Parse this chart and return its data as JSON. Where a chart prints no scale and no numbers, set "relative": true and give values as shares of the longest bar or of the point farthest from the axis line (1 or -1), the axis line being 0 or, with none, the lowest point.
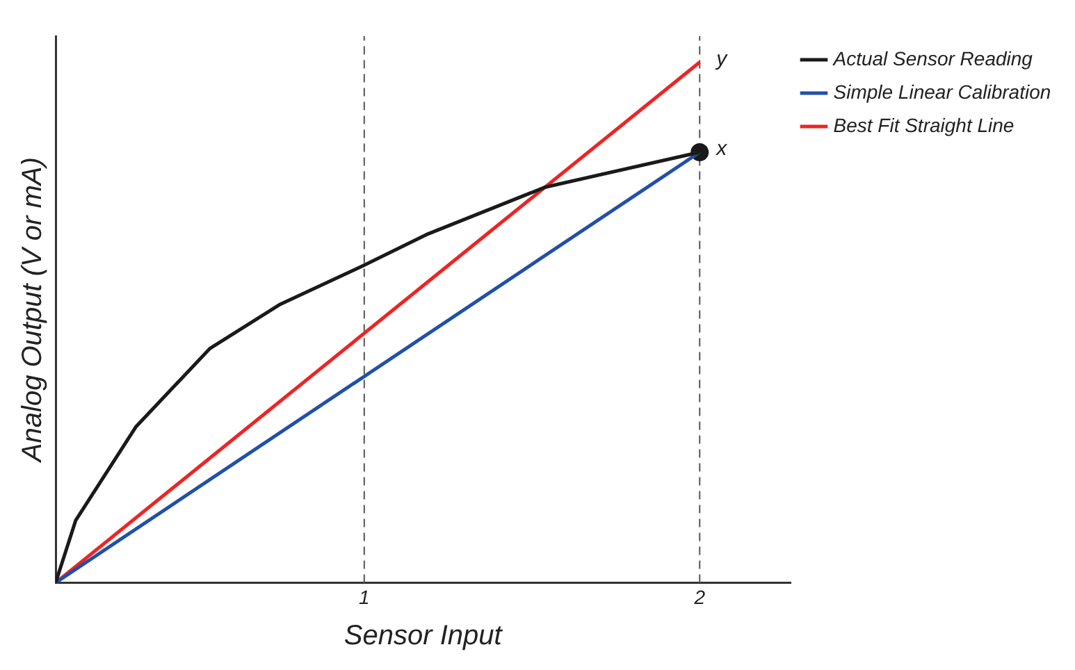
{
  "chart_data": {
    "type": "line",
    "relative": true,
    "xlabel": "Sensor Input",
    "ylabel": "Analog Output (V or mA)",
    "xlim": [
      0.08,
      2.27
    ],
    "xticks": [
      1,
      2
    ],
    "grid": false,
    "legend": "right",
    "marker": "none",
    "line_style": "solid",
    "series": [
      {
        "name": "Actual Sensor Reading",
        "color": "#1a1a1a",
        "x": [
          0.08,
          0.14,
          0.32,
          0.54,
          0.75,
          1.0,
          1.19,
          1.54,
          2.0
        ],
        "values": [
          0,
          0.12,
          0.3,
          0.45,
          0.535,
          0.61,
          0.67,
          0.76,
          0.827
        ]
      },
      {
        "name": "Simple Linear Calibration",
        "color": "#2150a8",
        "x": [
          0.08,
          2.0
        ],
        "values": [
          0,
          0.827
        ]
      },
      {
        "name": "Best Fit Straight Line",
        "color": "#ee2424",
        "x": [
          0.08,
          2.0
        ],
        "values": [
          0,
          1
        ]
      },
      {
        "type": "scatter",
        "color": "#1a1a1a",
        "marker": "circle",
        "x": [
          2.0
        ],
        "values": [
          0.827
        ]
      }
    ],
    "ref_lines": [
      {
        "axis": "x",
        "value": 1,
        "color": "#555555",
        "line_style": "dashed"
      },
      {
        "axis": "x",
        "value": 2,
        "color": "#555555",
        "line_style": "dashed"
      }
    ],
    "annotations": [
      {
        "text": "y",
        "x": 2,
        "y": 1
      },
      {
        "text": "x",
        "x": 2,
        "y": 0.827
      }
    ]
  }
}
